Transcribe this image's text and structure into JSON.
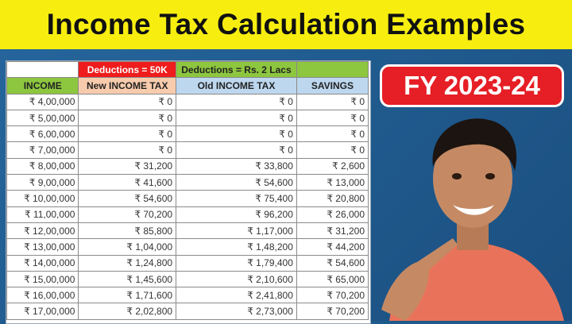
{
  "title": "Income Tax Calculation Examples",
  "badge": "FY 2023-24",
  "table": {
    "top_headers": [
      "",
      "Deductions = 50K",
      "Deductions = Rs. 2 Lacs",
      ""
    ],
    "headers": [
      "INCOME",
      "New INCOME TAX",
      "Old INCOME TAX",
      "SAVINGS"
    ],
    "rows": [
      [
        "₹ 4,00,000",
        "₹ 0",
        "₹ 0",
        "₹ 0"
      ],
      [
        "₹ 5,00,000",
        "₹ 0",
        "₹ 0",
        "₹ 0"
      ],
      [
        "₹ 6,00,000",
        "₹ 0",
        "₹ 0",
        "₹ 0"
      ],
      [
        "₹ 7,00,000",
        "₹ 0",
        "₹ 0",
        "₹ 0"
      ],
      [
        "₹ 8,00,000",
        "₹ 31,200",
        "₹ 33,800",
        "₹ 2,600"
      ],
      [
        "₹ 9,00,000",
        "₹ 41,600",
        "₹ 54,600",
        "₹ 13,000"
      ],
      [
        "₹ 10,00,000",
        "₹ 54,600",
        "₹ 75,400",
        "₹ 20,800"
      ],
      [
        "₹ 11,00,000",
        "₹ 70,200",
        "₹ 96,200",
        "₹ 26,000"
      ],
      [
        "₹ 12,00,000",
        "₹ 85,800",
        "₹ 1,17,000",
        "₹ 31,200"
      ],
      [
        "₹ 13,00,000",
        "₹ 1,04,000",
        "₹ 1,48,200",
        "₹ 44,200"
      ],
      [
        "₹ 14,00,000",
        "₹ 1,24,800",
        "₹ 1,79,400",
        "₹ 54,600"
      ],
      [
        "₹ 15,00,000",
        "₹ 1,45,600",
        "₹ 2,10,600",
        "₹ 65,000"
      ],
      [
        "₹ 16,00,000",
        "₹ 1,71,600",
        "₹ 2,41,800",
        "₹ 70,200"
      ],
      [
        "₹ 17,00,000",
        "₹ 2,02,800",
        "₹ 2,73,000",
        "₹ 70,200"
      ]
    ]
  },
  "colors": {
    "title_band": "#f7ee10",
    "background": "#1f5a8c",
    "badge": "#e61e25",
    "deduction_new": "#ee1c1c",
    "deduction_old": "#8dc63f"
  }
}
